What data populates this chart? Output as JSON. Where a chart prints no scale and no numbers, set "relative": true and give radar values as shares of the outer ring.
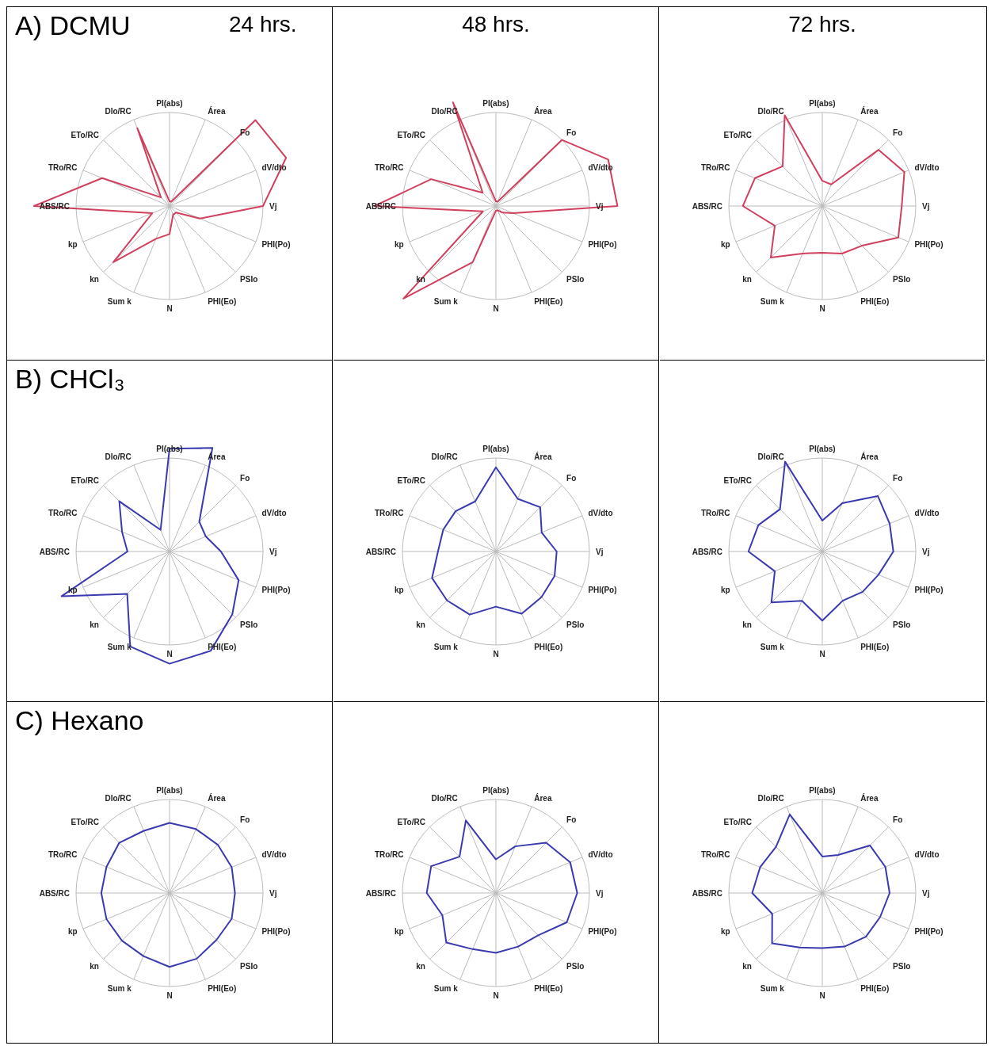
{
  "chart_data": [
    {
      "type": "radar",
      "title": "A) DCMU",
      "subtitle": "24 hrs.",
      "relative": true,
      "categories": [
        "PI(abs)",
        "Área",
        "Fo",
        "dV/dto",
        "Vj",
        "PHI(Po)",
        "PSIo",
        "PHI(Eo)",
        "N",
        "Sum k",
        "kn",
        "kp",
        "ABS/RC",
        "TRo/RC",
        "ETo/RC",
        "DIo/RC"
      ],
      "series": [
        {
          "color": "#d0405c",
          "values": [
            0.05,
            0.05,
            1.3,
            1.35,
            1.0,
            0.35,
            0.1,
            0.1,
            0.3,
            0.38,
            0.85,
            0.2,
            1.45,
            0.78,
            0.13,
            0.9
          ]
        }
      ]
    },
    {
      "type": "radar",
      "subtitle": "48 hrs.",
      "relative": true,
      "categories": [
        "PI(abs)",
        "Área",
        "Fo",
        "dV/dto",
        "Vj",
        "PHI(Po)",
        "PSIo",
        "PHI(Eo)",
        "N",
        "Sum k",
        "kn",
        "kp",
        "ABS/RC",
        "TRo/RC",
        "ETo/RC",
        "DIo/RC"
      ],
      "series": [
        {
          "color": "#d0405c",
          "values": [
            0.05,
            0.05,
            1.0,
            1.3,
            1.3,
            0.2,
            0.1,
            0.05,
            0.05,
            0.65,
            1.4,
            0.15,
            1.3,
            0.75,
            0.2,
            1.2
          ]
        }
      ]
    },
    {
      "type": "radar",
      "subtitle": "72 hrs.",
      "relative": true,
      "categories": [
        "PI(abs)",
        "Área",
        "Fo",
        "dV/dto",
        "Vj",
        "PHI(Po)",
        "PSIo",
        "PHI(Eo)",
        "N",
        "Sum k",
        "kn",
        "kp",
        "ABS/RC",
        "TRo/RC",
        "ETo/RC",
        "DIo/RC"
      ],
      "series": [
        {
          "color": "#d0405c",
          "values": [
            0.27,
            0.25,
            0.85,
            0.95,
            0.85,
            0.88,
            0.6,
            0.55,
            0.5,
            0.55,
            0.78,
            0.55,
            0.85,
            0.78,
            0.6,
            1.05
          ]
        }
      ]
    },
    {
      "type": "radar",
      "title": "B) CHCl₃",
      "relative": true,
      "categories": [
        "PI(abs)",
        "Área",
        "Fo",
        "dV/dto",
        "Vj",
        "PHI(Po)",
        "PSIo",
        "PHI(Eo)",
        "N",
        "Sum k",
        "kn",
        "kp",
        "ABS/RC",
        "TRo/RC",
        "ETo/RC",
        "DIo/RC"
      ],
      "series": [
        {
          "color": "#3a3ab0",
          "values": [
            1.1,
            1.2,
            0.45,
            0.42,
            0.55,
            0.8,
            0.95,
            1.15,
            1.2,
            1.1,
            0.64,
            1.25,
            0.45,
            0.55,
            0.76,
            0.25
          ]
        }
      ]
    },
    {
      "type": "radar",
      "relative": true,
      "categories": [
        "PI(abs)",
        "Área",
        "Fo",
        "dV/dto",
        "Vj",
        "PHI(Po)",
        "PSIo",
        "PHI(Eo)",
        "N",
        "Sum k",
        "kn",
        "kp",
        "ABS/RC",
        "TRo/RC",
        "ETo/RC",
        "DIo/RC"
      ],
      "series": [
        {
          "color": "#3a3ab0",
          "values": [
            0.9,
            0.61,
            0.67,
            0.53,
            0.65,
            0.68,
            0.69,
            0.72,
            0.59,
            0.73,
            0.74,
            0.74,
            0.62,
            0.61,
            0.61,
            0.58
          ]
        }
      ]
    },
    {
      "type": "radar",
      "relative": true,
      "categories": [
        "PI(abs)",
        "Área",
        "Fo",
        "dV/dto",
        "Vj",
        "PHI(Po)",
        "PSIo",
        "PHI(Eo)",
        "N",
        "Sum k",
        "kn",
        "kp",
        "ABS/RC",
        "TRo/RC",
        "ETo/RC",
        "DIo/RC"
      ],
      "series": [
        {
          "color": "#3a3ab0",
          "values": [
            0.33,
            0.56,
            0.84,
            0.78,
            0.76,
            0.65,
            0.61,
            0.57,
            0.74,
            0.57,
            0.77,
            0.55,
            0.79,
            0.74,
            0.64,
            1.04
          ]
        }
      ]
    },
    {
      "type": "radar",
      "title": "C) Hexano",
      "relative": true,
      "categories": [
        "PI(abs)",
        "Área",
        "Fo",
        "dV/dto",
        "Vj",
        "PHI(Po)",
        "PSIo",
        "PHI(Eo)",
        "N",
        "Sum k",
        "kn",
        "kp",
        "ABS/RC",
        "TRo/RC",
        "ETo/RC",
        "DIo/RC"
      ],
      "series": [
        {
          "color": "#3a3ab0",
          "values": [
            0.75,
            0.74,
            0.73,
            0.72,
            0.7,
            0.72,
            0.71,
            0.76,
            0.79,
            0.73,
            0.72,
            0.73,
            0.73,
            0.73,
            0.76,
            0.72
          ]
        }
      ]
    },
    {
      "type": "radar",
      "relative": true,
      "categories": [
        "PI(abs)",
        "Área",
        "Fo",
        "dV/dto",
        "Vj",
        "PHI(Po)",
        "PSIo",
        "PHI(Eo)",
        "N",
        "Sum k",
        "kn",
        "kp",
        "ABS/RC",
        "TRo/RC",
        "ETo/RC",
        "DIo/RC"
      ],
      "series": [
        {
          "color": "#3a3ab0",
          "values": [
            0.36,
            0.54,
            0.76,
            0.86,
            0.87,
            0.82,
            0.64,
            0.62,
            0.64,
            0.65,
            0.75,
            0.62,
            0.74,
            0.75,
            0.55,
            0.84
          ]
        }
      ]
    },
    {
      "type": "radar",
      "relative": true,
      "categories": [
        "PI(abs)",
        "Área",
        "Fo",
        "dV/dto",
        "Vj",
        "PHI(Po)",
        "PSIo",
        "PHI(Eo)",
        "N",
        "Sum k",
        "kn",
        "kp",
        "ABS/RC",
        "TRo/RC",
        "ETo/RC",
        "DIo/RC"
      ],
      "series": [
        {
          "color": "#3a3ab0",
          "values": [
            0.39,
            0.44,
            0.72,
            0.73,
            0.72,
            0.67,
            0.66,
            0.62,
            0.59,
            0.63,
            0.76,
            0.58,
            0.75,
            0.72,
            0.7,
            0.91
          ]
        }
      ]
    }
  ]
}
